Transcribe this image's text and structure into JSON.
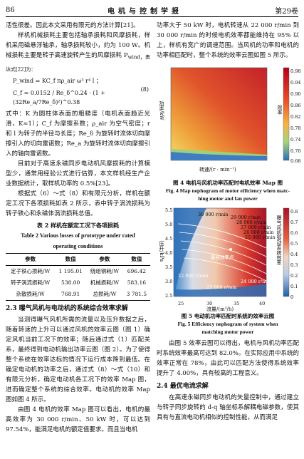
{
  "header": {
    "page": "86",
    "journal": "电机与控制学报",
    "volume": "第29卷"
  },
  "left": {
    "p1": "活性很差。因此本文采用有限元的方法计算[21]。",
    "p2": "样机机械损耗主要包括轴承损耗和风摩损耗，样机采用磁悬浮轴承，轴承损耗较小，约为 100 W。机械损耗主要是转子高速旋转产生的风摩损耗 P",
    "p2b": "wind，表达式[22]为：",
    "f1": "P_wind = KC_f πρ_air ω³ r⁴ l ；",
    "f2": "C_f = 0.0152 / Re_δ^0.24 · (1 + (32Re_a/7Re_δ)²)^0.38",
    "eqno": "(8)",
    "p3": "式中：K 为圆柱体表面的粗糙度（电机表面趋近光滑，K≈1）；C_f 为摩擦系数；ρ_air 为空气密度；r 和 l 为转子的半径与长度；Re_δ 为旋转时流体切向摩擦引入的切向雷诺数；Re_a 为旋转时流体切向摩擦引入的轴向雷诺数。",
    "p4": "目前对于高速永磁同步电动机风摩损耗的计算模型少，通常用经验公式进行估算，本文样机经生产企业数据统计，取样机功率的 0.5%[23]。",
    "p5": "根据式（6）～式（8）和有限元分析，样机在额定工况下各项损耗如表 2 所示，表中转子涡流损耗为转子铁心和永磁体涡流损耗总值。",
    "table_title_cn": "表 2   样机在额定工况下各项损耗",
    "table_title_en1": "Table 2   Various losses of prototype under rated",
    "table_title_en2": "operating conditions",
    "table_headers": [
      "参数",
      "数值",
      "参数",
      "数值"
    ],
    "table_rows": [
      [
        "定子铁心损耗/W",
        "1 195.01",
        "绕组铜耗/W",
        "696.42"
      ],
      [
        "转子涡流损耗/W",
        "538.00",
        "机械损耗/W",
        "583.16"
      ],
      [
        "杂散损耗/W",
        "768.91",
        "总损耗/W",
        "3 781.5"
      ]
    ],
    "sec": "2.3   曝气风机与电动机的系统综合效率求解",
    "p6": "当测得曝气风机所需的流量以及压升数据之后，随着转速的上升可以通过风机的效率云图（图 1）确定风机当前工况下的效率；随后通过式（1）匹配关系，最终得到电动机输出功率云图（图 2）。为了使得整个系统在效率达标的情况下运行成本降到最低。在确定电动机的功率之后，通过式（8）～式（10）和有限元分析，确定电动机各工况下的效率 Map 图，进而确定整个系统的综合效率。电动机的效率 Map 图如图 4 所示。",
    "p7": "由图 4 电机的效率 Map 图可以看出，电机的最高效率为 30 000 r/min、50 kW 时，可以达到 97.54%，能满足电机的额定值要求。而且当电机"
  },
  "right": {
    "p1": "功率大于 50 kW 时，电机转速从 22 000 r/min 到 30 000 r/min 的时候电机效率都能维持在 95% 以上，样机有宽广的调速范围。当风机的功率和电机的功率相匹配时，整个系统的效率云图如图 5 所示。",
    "fig4_ylabel": "功率/kW",
    "fig4_xlabel": "转速/(r · min⁻¹)",
    "fig4_cbar_label": "效率",
    "fig4_cbar_ticks": [
      "0.98",
      "0.94",
      "0.90",
      "0.86",
      "0.82",
      "0.78",
      "0.74",
      "0.70",
      "0.68"
    ],
    "fig4_cap_cn": "图 4   电机与风机功率匹配时电机效率 Map 图",
    "fig4_cap_en1": "Fig. 4   Map nephogram of motor efficiency when matc-",
    "fig4_cap_en2": "hing motor and fan power",
    "fig5_ylabel": "压升/kPa",
    "fig5_xlabel": "流量/(m³/h)",
    "fig5_cbar_label": "曝气风机驱动系统效率",
    "fig5_cbar_ticks": [
      "0.8",
      "0.7",
      "0.6",
      "0.5",
      "0.4",
      "0.3",
      "0.2",
      "0.1",
      "0"
    ],
    "fig5_yticks": [
      "5.5",
      "5.0",
      "4.5",
      "4.0",
      "3.5",
      "3.0",
      "2.5"
    ],
    "fig5_xticks": [
      "25",
      "30",
      "35",
      "40"
    ],
    "fig5_speeds": [
      "30 000 r/min",
      "29 000 r/min",
      "28 000 r/min",
      "27 000 r/min",
      "26 000 r/min",
      "25 000 r/min",
      "24 000 r/min",
      "23 000 r/min",
      "22 000 r/min"
    ],
    "fig5_point": "最高效率点",
    "fig5_cap_cn": "图 5   电动机功率匹配时系统的效率云图",
    "fig5_cap_en1": "Fig. 5   Efficiency nephogram of system when",
    "fig5_cap_en2": "matching motor power",
    "p2": "由图 5 效率云图可以得出，电机与风机功率匹配时系统效率最高可达到 82.0%。在实际应用中系统的效率正常在 78%，由此可以匹配方法使得系统效率提升了 4.00%，具有较高的工程意义。",
    "sec": "2.4   最优电流求解",
    "p3": "在高速永磁同步电动机的矢量控制中，通过建立与转子同步旋转的 d-q 轴坐标系解耦电磁参数，使其具有与直流电动机相似的控制性能，从而满足"
  }
}
